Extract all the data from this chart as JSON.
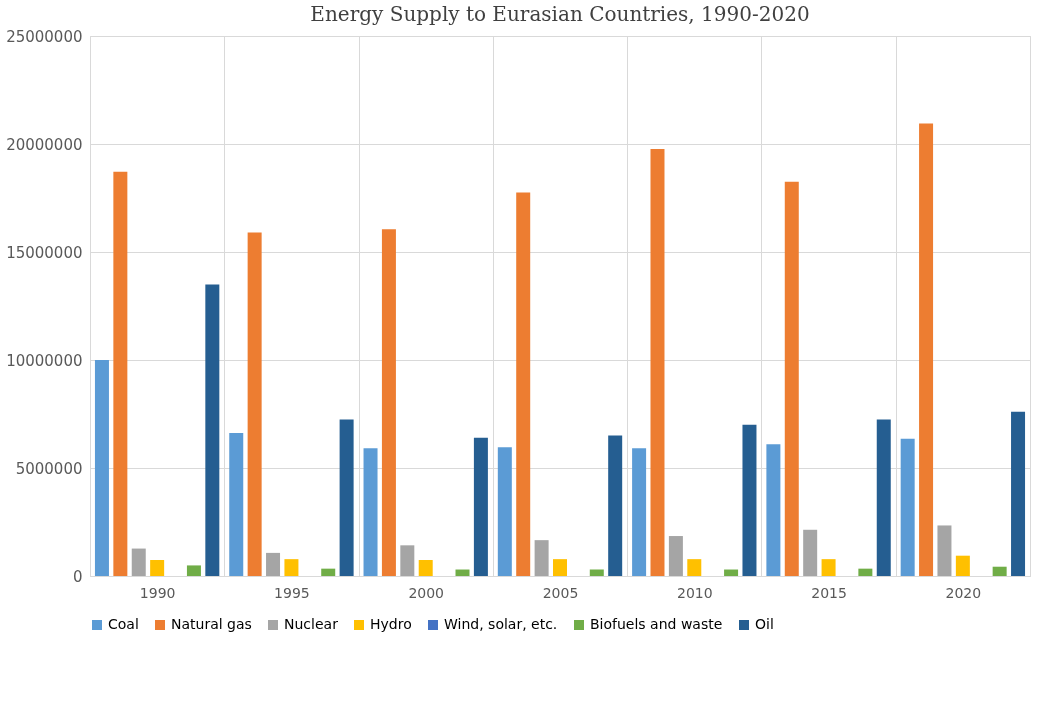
{
  "chart_data": {
    "type": "bar",
    "title": "Energy Supply to Eurasian Countries, 1990-2020",
    "categories": [
      "1990",
      "1995",
      "2000",
      "2005",
      "2010",
      "2015",
      "2020"
    ],
    "series": [
      {
        "name": "Coal",
        "color": "#5b9bd5",
        "values": [
          10000000,
          6620000,
          5910000,
          5960000,
          5910000,
          6100000,
          6350000
        ]
      },
      {
        "name": "Natural gas",
        "color": "#ed7d31",
        "values": [
          18720000,
          15900000,
          16050000,
          17750000,
          19770000,
          18250000,
          20950000
        ]
      },
      {
        "name": "Nuclear",
        "color": "#a5a5a5",
        "values": [
          1270000,
          1070000,
          1420000,
          1660000,
          1850000,
          2140000,
          2340000
        ]
      },
      {
        "name": "Hydro",
        "color": "#ffc000",
        "values": [
          740000,
          780000,
          740000,
          780000,
          780000,
          780000,
          940000
        ]
      },
      {
        "name": "Wind, solar, etc.",
        "color": "#4472c4",
        "values": [
          0,
          0,
          0,
          0,
          0,
          0,
          0
        ]
      },
      {
        "name": "Biofuels and waste",
        "color": "#70ad47",
        "values": [
          490000,
          340000,
          300000,
          300000,
          300000,
          340000,
          430000
        ]
      },
      {
        "name": "Oil",
        "color": "#255e91",
        "values": [
          13500000,
          7240000,
          6400000,
          6500000,
          7000000,
          7240000,
          7600000
        ]
      }
    ],
    "ylim": [
      0,
      25000000
    ],
    "yticks": [
      0,
      5000000,
      10000000,
      15000000,
      20000000,
      25000000
    ],
    "grid": true,
    "legend": "bottom"
  }
}
